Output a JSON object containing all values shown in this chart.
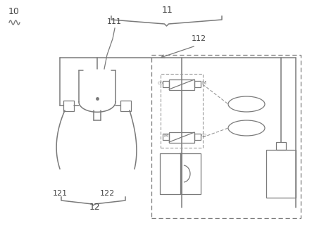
{
  "bg_color": "#ffffff",
  "line_color": "#7a7a7a",
  "dashed_color": "#999999",
  "label_color": "#444444",
  "label_10": "10",
  "label_11": "11",
  "label_111": "111",
  "label_112": "112",
  "label_12": "12",
  "label_121": "121",
  "label_122": "122",
  "fig_width": 4.43,
  "fig_height": 3.44,
  "dpi": 100
}
